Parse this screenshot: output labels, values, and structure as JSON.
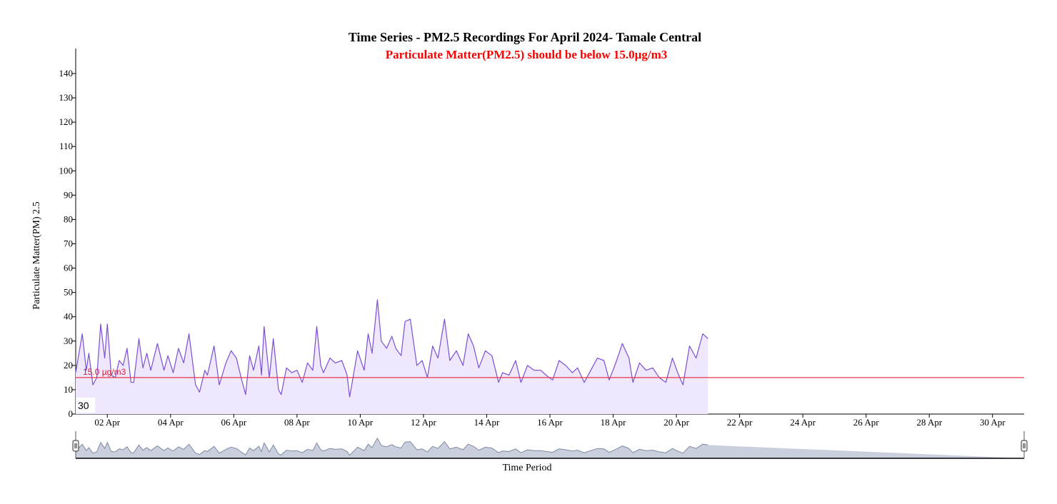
{
  "chart_data": {
    "type": "area",
    "title": "Time Series - PM2.5 Recordings For April 2024- Tamale Central",
    "subtitle": "Particulate Matter(PM2.5) should be below 15.0µg/m3",
    "xlabel": "Time Period",
    "ylabel": "Particulate Matter(PM) 2.5",
    "ylim": [
      0,
      150
    ],
    "xlim": [
      "2024-04-01T00:00",
      "2024-05-01T00:00"
    ],
    "yticks": [
      0,
      10,
      20,
      30,
      40,
      50,
      60,
      70,
      80,
      90,
      100,
      110,
      120,
      130,
      140
    ],
    "xticks": [
      {
        "date": "2024-04-02",
        "label": "02 Apr"
      },
      {
        "date": "2024-04-04",
        "label": "04 Apr"
      },
      {
        "date": "2024-04-06",
        "label": "06 Apr"
      },
      {
        "date": "2024-04-08",
        "label": "08 Apr"
      },
      {
        "date": "2024-04-10",
        "label": "10 Apr"
      },
      {
        "date": "2024-04-12",
        "label": "12 Apr"
      },
      {
        "date": "2024-04-14",
        "label": "14 Apr"
      },
      {
        "date": "2024-04-16",
        "label": "16 Apr"
      },
      {
        "date": "2024-04-18",
        "label": "18 Apr"
      },
      {
        "date": "2024-04-20",
        "label": "20 Apr"
      },
      {
        "date": "2024-04-22",
        "label": "22 Apr"
      },
      {
        "date": "2024-04-24",
        "label": "24 Apr"
      },
      {
        "date": "2024-04-26",
        "label": "26 Apr"
      },
      {
        "date": "2024-04-28",
        "label": "28 Apr"
      },
      {
        "date": "2024-04-30",
        "label": "30 Apr"
      }
    ],
    "threshold": {
      "value": 15,
      "label": "15.0 µg/m3",
      "color": "#e8334a"
    },
    "badge": "30",
    "series": [
      {
        "color": "#7b4fd6",
        "fill": "#efe8fd",
        "points": [
          [
            "2024-04-01T00:00",
            17
          ],
          [
            "2024-04-01T05:00",
            33
          ],
          [
            "2024-04-01T08:00",
            18
          ],
          [
            "2024-04-01T10:00",
            25
          ],
          [
            "2024-04-01T13:00",
            12
          ],
          [
            "2024-04-01T16:00",
            15
          ],
          [
            "2024-04-01T19:00",
            37
          ],
          [
            "2024-04-01T22:00",
            23
          ],
          [
            "2024-04-02T00:00",
            37
          ],
          [
            "2024-04-02T03:00",
            16
          ],
          [
            "2024-04-02T06:00",
            15
          ],
          [
            "2024-04-02T09:00",
            22
          ],
          [
            "2024-04-02T12:00",
            20
          ],
          [
            "2024-04-02T15:00",
            27
          ],
          [
            "2024-04-02T18:00",
            13
          ],
          [
            "2024-04-02T20:00",
            13
          ],
          [
            "2024-04-03T00:00",
            31
          ],
          [
            "2024-04-03T03:00",
            19
          ],
          [
            "2024-04-03T06:00",
            25
          ],
          [
            "2024-04-03T09:00",
            18
          ],
          [
            "2024-04-03T14:00",
            29
          ],
          [
            "2024-04-03T19:00",
            18
          ],
          [
            "2024-04-03T22:00",
            24
          ],
          [
            "2024-04-04T02:00",
            17
          ],
          [
            "2024-04-04T06:00",
            27
          ],
          [
            "2024-04-04T10:00",
            21
          ],
          [
            "2024-04-04T14:00",
            33
          ],
          [
            "2024-04-04T19:00",
            12
          ],
          [
            "2024-04-04T22:00",
            9
          ],
          [
            "2024-04-05T02:00",
            18
          ],
          [
            "2024-04-05T04:00",
            16
          ],
          [
            "2024-04-05T09:00",
            28
          ],
          [
            "2024-04-05T13:00",
            12
          ],
          [
            "2024-04-05T18:00",
            21
          ],
          [
            "2024-04-05T22:00",
            26
          ],
          [
            "2024-04-06T02:00",
            23
          ],
          [
            "2024-04-06T06:00",
            14
          ],
          [
            "2024-04-06T09:00",
            8
          ],
          [
            "2024-04-06T12:00",
            24
          ],
          [
            "2024-04-06T15:00",
            18
          ],
          [
            "2024-04-06T19:00",
            28
          ],
          [
            "2024-04-06T21:00",
            16
          ],
          [
            "2024-04-06T23:00",
            36
          ],
          [
            "2024-04-07T03:00",
            15
          ],
          [
            "2024-04-07T06:00",
            31
          ],
          [
            "2024-04-07T10:00",
            10
          ],
          [
            "2024-04-07T12:00",
            8
          ],
          [
            "2024-04-07T16:00",
            19
          ],
          [
            "2024-04-07T20:00",
            17
          ],
          [
            "2024-04-08T00:00",
            18
          ],
          [
            "2024-04-08T04:00",
            13
          ],
          [
            "2024-04-08T08:00",
            21
          ],
          [
            "2024-04-08T12:00",
            18
          ],
          [
            "2024-04-08T15:00",
            36
          ],
          [
            "2024-04-08T18:00",
            20
          ],
          [
            "2024-04-08T20:00",
            17
          ],
          [
            "2024-04-09T01:00",
            23
          ],
          [
            "2024-04-09T05:00",
            21
          ],
          [
            "2024-04-09T10:00",
            22
          ],
          [
            "2024-04-09T14:00",
            16
          ],
          [
            "2024-04-09T16:00",
            7
          ],
          [
            "2024-04-09T22:00",
            26
          ],
          [
            "2024-04-10T03:00",
            18
          ],
          [
            "2024-04-10T06:00",
            33
          ],
          [
            "2024-04-10T09:00",
            25
          ],
          [
            "2024-04-10T13:00",
            47
          ],
          [
            "2024-04-10T16:00",
            30
          ],
          [
            "2024-04-10T20:00",
            27
          ],
          [
            "2024-04-11T00:00",
            32
          ],
          [
            "2024-04-11T03:00",
            27
          ],
          [
            "2024-04-11T07:00",
            24
          ],
          [
            "2024-04-11T10:00",
            38
          ],
          [
            "2024-04-11T14:00",
            39
          ],
          [
            "2024-04-11T19:00",
            20
          ],
          [
            "2024-04-11T23:00",
            22
          ],
          [
            "2024-04-12T03:00",
            15
          ],
          [
            "2024-04-12T07:00",
            28
          ],
          [
            "2024-04-12T11:00",
            23
          ],
          [
            "2024-04-12T16:00",
            39
          ],
          [
            "2024-04-12T20:00",
            22
          ],
          [
            "2024-04-13T01:00",
            26
          ],
          [
            "2024-04-13T06:00",
            20
          ],
          [
            "2024-04-13T10:00",
            33
          ],
          [
            "2024-04-13T14:00",
            28
          ],
          [
            "2024-04-13T18:00",
            19
          ],
          [
            "2024-04-13T23:00",
            26
          ],
          [
            "2024-04-14T04:00",
            24
          ],
          [
            "2024-04-14T09:00",
            13
          ],
          [
            "2024-04-14T12:00",
            17
          ],
          [
            "2024-04-14T17:00",
            16
          ],
          [
            "2024-04-14T22:00",
            22
          ],
          [
            "2024-04-15T02:00",
            13
          ],
          [
            "2024-04-15T07:00",
            20
          ],
          [
            "2024-04-15T12:00",
            18
          ],
          [
            "2024-04-15T17:00",
            18
          ],
          [
            "2024-04-15T21:00",
            16
          ],
          [
            "2024-04-16T02:00",
            14
          ],
          [
            "2024-04-16T07:00",
            22
          ],
          [
            "2024-04-16T12:00",
            20
          ],
          [
            "2024-04-16T17:00",
            17
          ],
          [
            "2024-04-16T21:00",
            19
          ],
          [
            "2024-04-17T02:00",
            13
          ],
          [
            "2024-04-17T07:00",
            18
          ],
          [
            "2024-04-17T12:00",
            23
          ],
          [
            "2024-04-17T17:00",
            22
          ],
          [
            "2024-04-17T21:00",
            14
          ],
          [
            "2024-04-18T02:00",
            21
          ],
          [
            "2024-04-18T07:00",
            29
          ],
          [
            "2024-04-18T12:00",
            23
          ],
          [
            "2024-04-18T15:00",
            13
          ],
          [
            "2024-04-18T20:00",
            21
          ],
          [
            "2024-04-19T01:00",
            18
          ],
          [
            "2024-04-19T06:00",
            19
          ],
          [
            "2024-04-19T11:00",
            15
          ],
          [
            "2024-04-19T16:00",
            13
          ],
          [
            "2024-04-19T21:00",
            23
          ],
          [
            "2024-04-20T01:00",
            17
          ],
          [
            "2024-04-20T05:00",
            12
          ],
          [
            "2024-04-20T10:00",
            28
          ],
          [
            "2024-04-20T15:00",
            23
          ],
          [
            "2024-04-20T20:00",
            33
          ],
          [
            "2024-04-21T00:00",
            31
          ]
        ]
      }
    ],
    "navigator": {
      "start": "2024-04-01T00:00",
      "end": "2024-05-01T00:00",
      "fill": "#c9cfdc",
      "line": "#7f8aa2"
    }
  }
}
